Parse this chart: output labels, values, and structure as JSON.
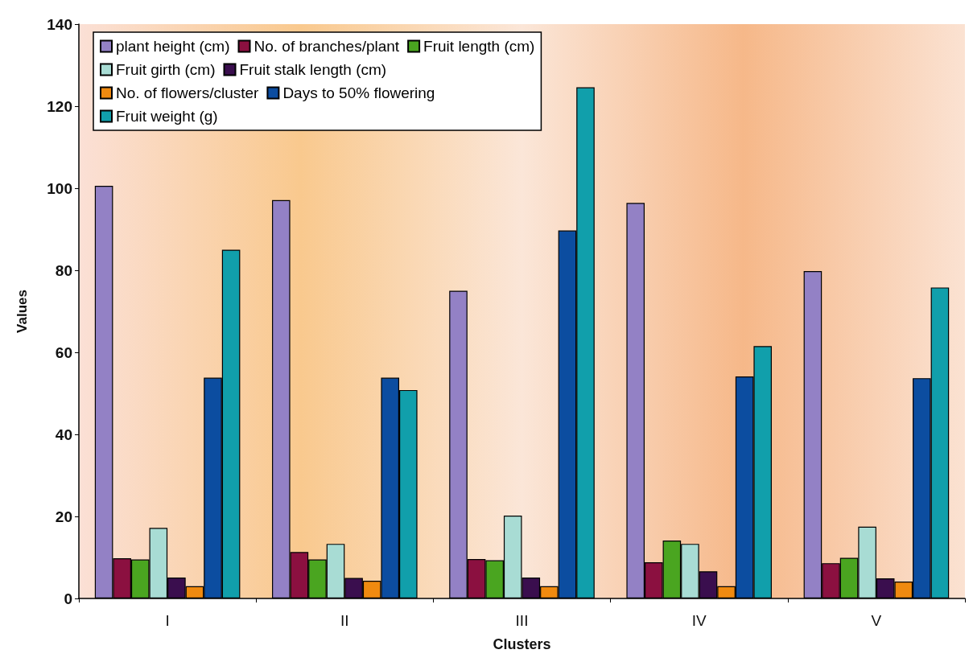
{
  "chart_data": {
    "type": "bar",
    "xlabel": "Clusters",
    "ylabel": "Values",
    "categories": [
      "I",
      "II",
      "III",
      "IV",
      "V"
    ],
    "series": [
      {
        "name": "plant height (cm)",
        "color": "#9381c5",
        "values": [
          100.6,
          97.1,
          75,
          96.4,
          79.8
        ]
      },
      {
        "name": "No. of branches/plant",
        "color": "#8b1040",
        "values": [
          9.8,
          11.3,
          9.6,
          8.8,
          8.6
        ]
      },
      {
        "name": "Fruit length (cm)",
        "color": "#4aa520",
        "values": [
          9.5,
          9.5,
          9.3,
          14.1,
          9.9
        ]
      },
      {
        "name": "Fruit girth (cm)",
        "color": "#a8dcd4",
        "values": [
          17.2,
          13.3,
          20.2,
          13.3,
          17.5
        ]
      },
      {
        "name": "Fruit stalk length (cm)",
        "color": "#3a0e4e",
        "values": [
          5.1,
          5.0,
          5.1,
          6.6,
          4.9
        ]
      },
      {
        "name": "No. of flowers/cluster",
        "color": "#f08a10",
        "values": [
          3.0,
          4.3,
          3.0,
          3.0,
          4.1
        ]
      },
      {
        "name": "Days to 50% flowering",
        "color": "#0c4da0",
        "values": [
          53.8,
          53.8,
          89.7,
          54.1,
          53.7
        ]
      },
      {
        "name": "Fruit weight (g)",
        "color": "#119fab",
        "values": [
          85,
          50.8,
          124.6,
          61.5,
          75.8
        ]
      }
    ],
    "ylim": [
      0,
      140
    ],
    "yticks": [
      0,
      20,
      40,
      60,
      80,
      100,
      120,
      140
    ],
    "grid": false,
    "legend": "top left"
  }
}
